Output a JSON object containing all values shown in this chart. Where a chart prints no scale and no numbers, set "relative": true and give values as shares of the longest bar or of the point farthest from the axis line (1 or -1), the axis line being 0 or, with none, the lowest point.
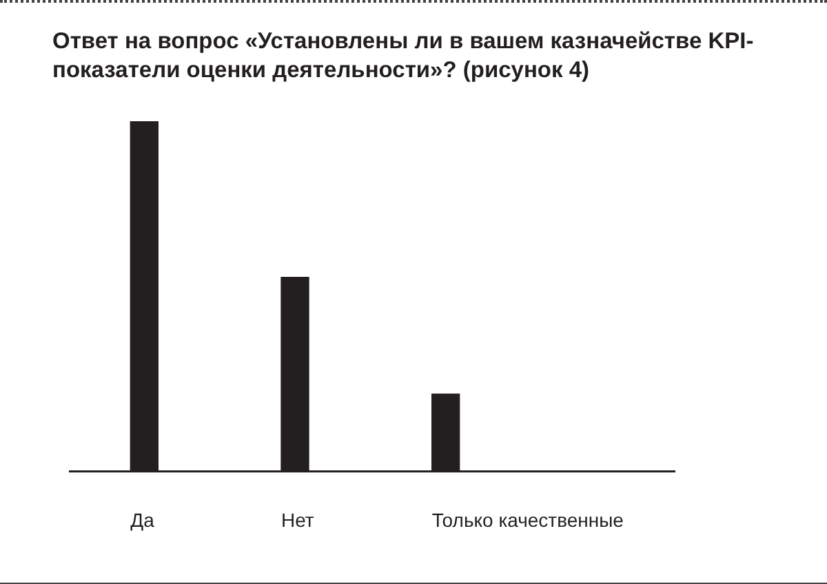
{
  "chart_data": {
    "type": "bar",
    "title": "Ответ на вопрос «Установлены ли в вашем казначействе KPI-показатели оценки деятельности»? (рисунок 4)",
    "categories": [
      "Да",
      "Нет",
      "Только качественные"
    ],
    "values": [
      1,
      0.554,
      0.221
    ],
    "color": "#231f20",
    "relative": true
  }
}
